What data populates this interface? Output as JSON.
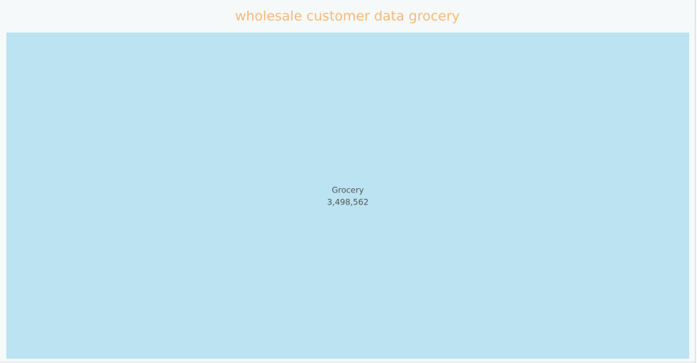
{
  "colors": {
    "title": "#f5b87a",
    "tile": "#bbe3f1",
    "background": "#f5f9f9",
    "label": "#555555"
  },
  "chart_data": {
    "type": "treemap",
    "title": "wholesale customer data grocery",
    "items": [
      {
        "label": "Grocery",
        "value": 3498562,
        "value_text": "3,498,562"
      }
    ]
  }
}
